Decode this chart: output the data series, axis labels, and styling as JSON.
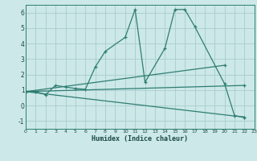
{
  "xlabel": "Humidex (Indice chaleur)",
  "xlim": [
    0,
    23
  ],
  "ylim": [
    -1.5,
    6.5
  ],
  "xticks": [
    0,
    1,
    2,
    3,
    4,
    5,
    6,
    7,
    8,
    9,
    10,
    11,
    12,
    13,
    14,
    15,
    16,
    17,
    18,
    19,
    20,
    21,
    22,
    23
  ],
  "yticks": [
    -1,
    0,
    1,
    2,
    3,
    4,
    5,
    6
  ],
  "bg_color": "#cce8e8",
  "grid_color": "#aacccc",
  "line_color": "#2e7d72",
  "curve_main": {
    "x": [
      0,
      1,
      2,
      3,
      4,
      5,
      6,
      7,
      8,
      10,
      11,
      12,
      14,
      15,
      16,
      17,
      20,
      21,
      22
    ],
    "y": [
      0.9,
      0.9,
      0.7,
      1.3,
      1.2,
      1.1,
      1.05,
      2.5,
      3.5,
      4.4,
      6.2,
      1.5,
      3.7,
      6.2,
      6.2,
      5.1,
      1.4,
      -0.65,
      -0.75
    ]
  },
  "line1_x": [
    0,
    20
  ],
  "line1_y": [
    0.9,
    2.6
  ],
  "line2_x": [
    0,
    22
  ],
  "line2_y": [
    0.9,
    -0.75
  ],
  "line3_x": [
    0,
    22
  ],
  "line3_y": [
    0.9,
    1.3
  ]
}
